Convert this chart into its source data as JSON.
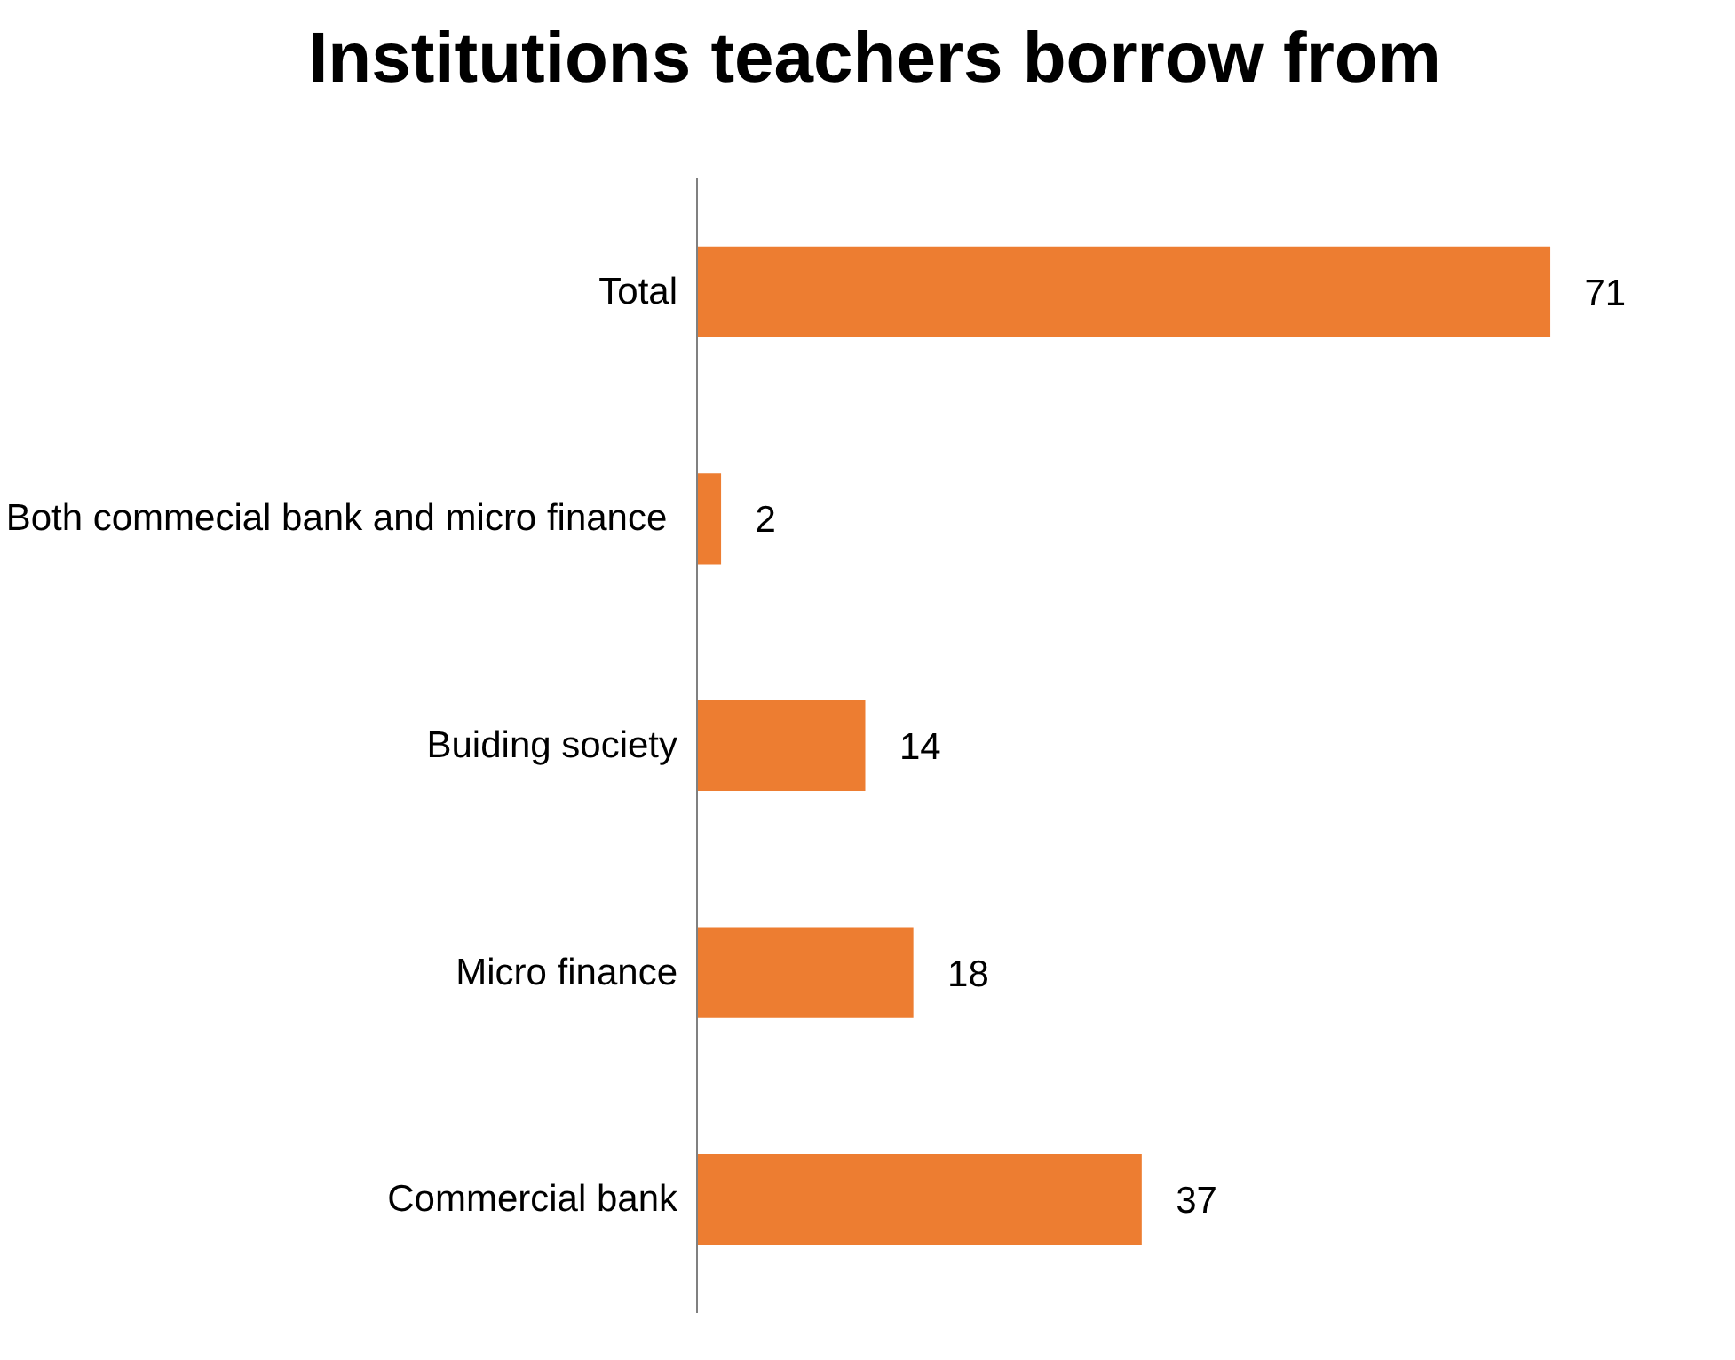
{
  "chart_data": {
    "type": "bar",
    "title": "Institutions teachers borrow from",
    "orientation": "horizontal",
    "categories": [
      "Total",
      "Both  commecial bank and micro finance",
      "Buiding society",
      "Micro finance",
      "Commercial bank"
    ],
    "values": [
      71,
      2,
      14,
      18,
      37
    ],
    "color": "#ed7d31",
    "data_labels": true,
    "grid": false
  }
}
